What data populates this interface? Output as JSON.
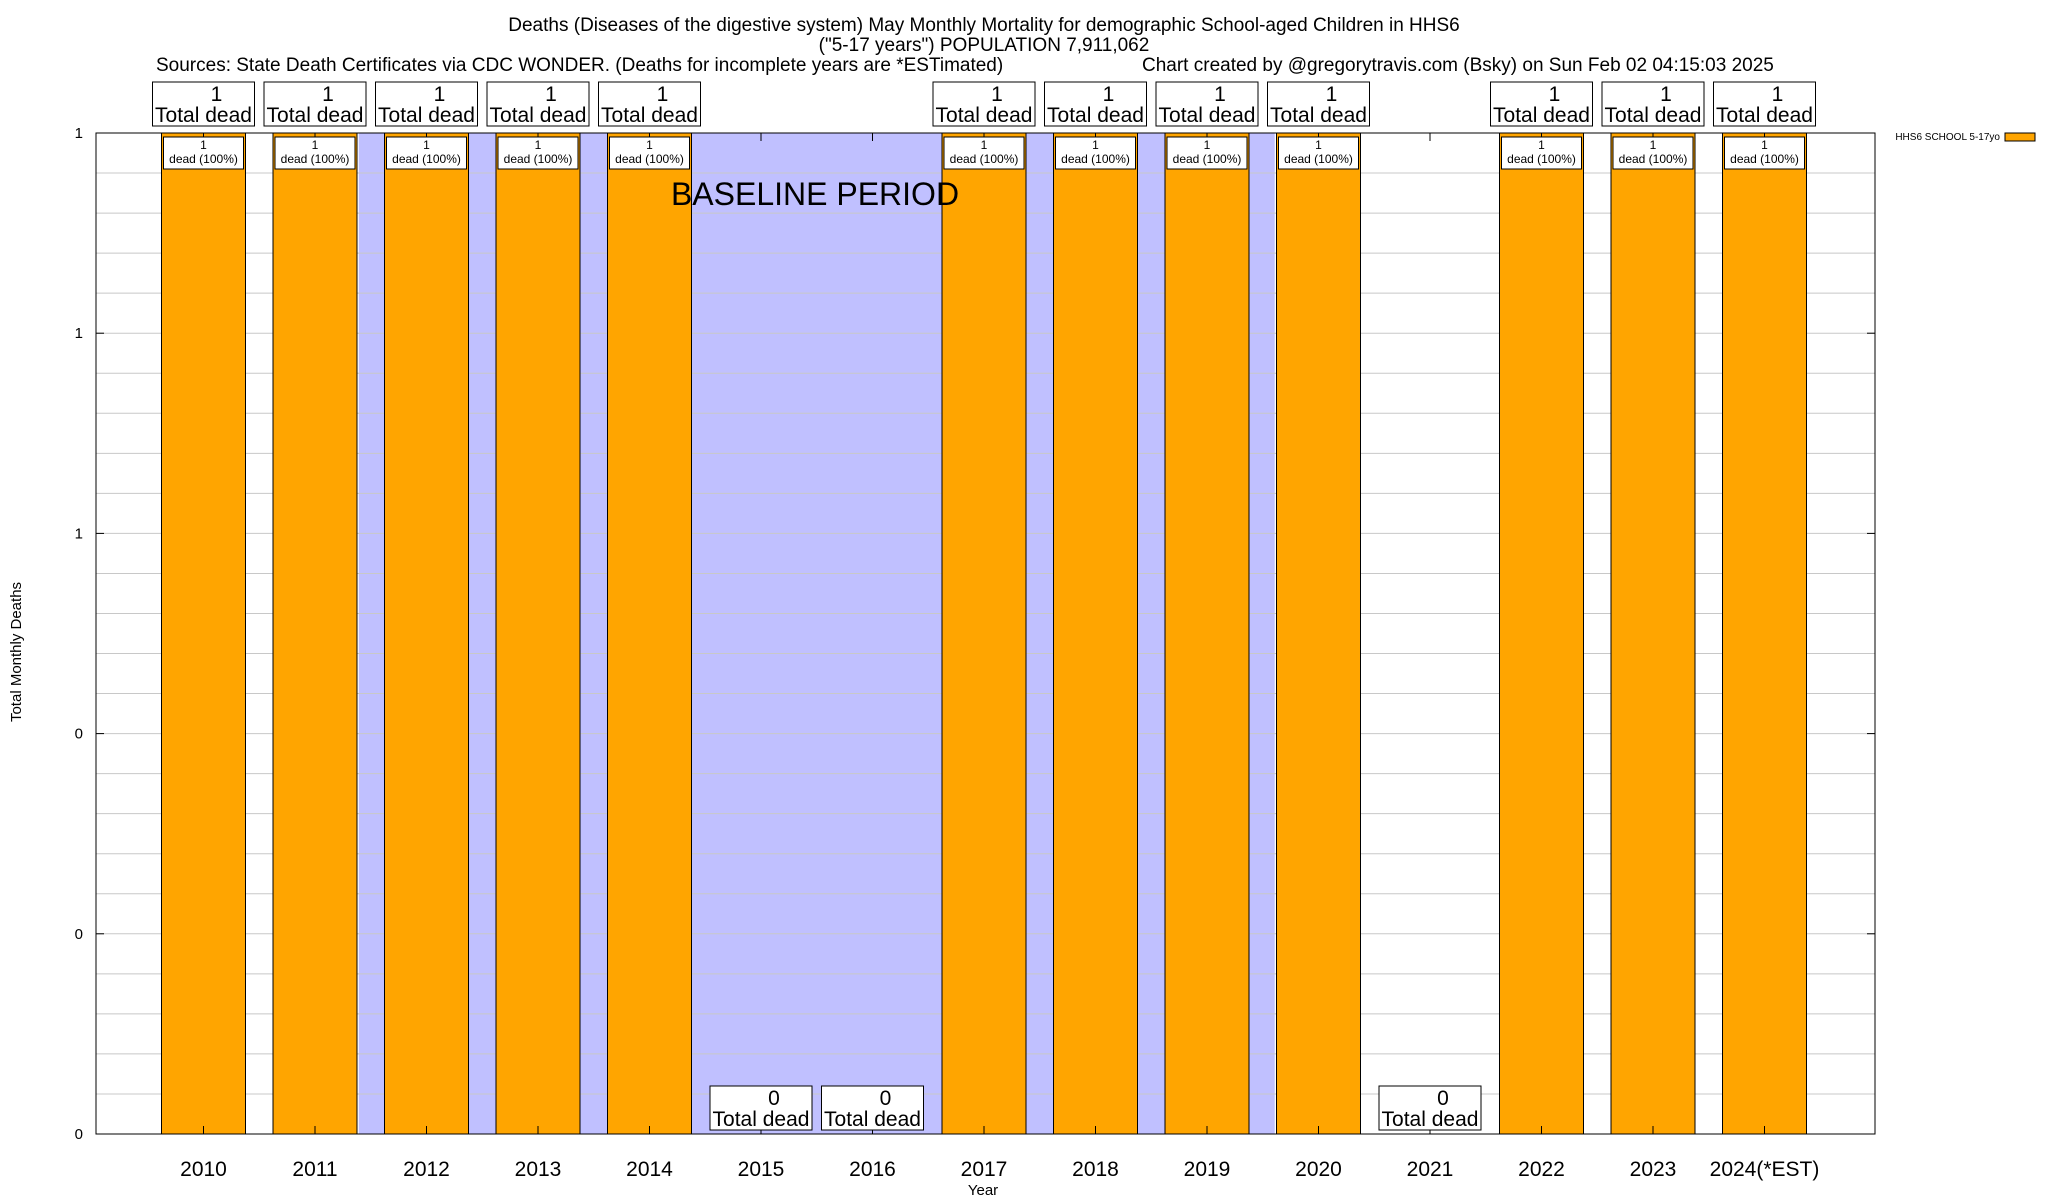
{
  "header": {
    "title_line1": "Deaths (Diseases of the digestive system) May Monthly Mortality for demographic School-aged Children in HHS6",
    "title_line2": "(\"5-17 years\") POPULATION 7,911,062",
    "sources": "Sources: State Death Certificates via CDC WONDER. (Deaths for incomplete years are *ESTimated)",
    "credit": "Chart created by @gregorytravis.com (Bsky) on Sun Feb 02 04:15:03 2025"
  },
  "chart_data": {
    "type": "bar",
    "categories": [
      "2010",
      "2011",
      "2012",
      "2013",
      "2014",
      "2015",
      "2016",
      "2017",
      "2018",
      "2019",
      "2020",
      "2021",
      "2022",
      "2023",
      "2024(*EST)"
    ],
    "series": [
      {
        "name": "HHS6 SCHOOL 5-17yo",
        "color": "#ffa500",
        "values": [
          1,
          1,
          1,
          1,
          1,
          0,
          0,
          1,
          1,
          1,
          1,
          0,
          1,
          1,
          1
        ]
      }
    ],
    "total_label_numbers": [
      "1",
      "1",
      "1",
      "1",
      "1",
      "0",
      "0",
      "1",
      "1",
      "1",
      "1",
      "0",
      "1",
      "1",
      "1"
    ],
    "total_label_text": "Total dead",
    "inner_labels": [
      "1\ndead (100%)",
      "1\ndead (100%)",
      "1\ndead (100%)",
      "1\ndead (100%)",
      "1\ndead (100%)",
      "",
      "",
      "1\ndead (100%)",
      "1\ndead (100%)",
      "1\ndead (100%)",
      "1\ndead (100%)",
      "",
      "1\ndead (100%)",
      "1\ndead (100%)",
      "1\ndead (100%)"
    ],
    "xlabel": "Year",
    "ylabel": "Total Monthly Deaths",
    "ylim": [
      0,
      1
    ],
    "y_tick_values": [
      0,
      0.2,
      0.4,
      0.6,
      0.8,
      1
    ],
    "y_tick_labels": [
      "0",
      "0",
      "0",
      "1",
      "1",
      "1"
    ],
    "baseline_label": "BASELINE PERIOD",
    "baseline_color": "#c0c0ff",
    "shaded_categories": [
      "2012",
      "2013",
      "2014",
      "2015",
      "2016",
      "2017",
      "2018",
      "2019"
    ],
    "grid": true,
    "legend_position": "top-right"
  }
}
